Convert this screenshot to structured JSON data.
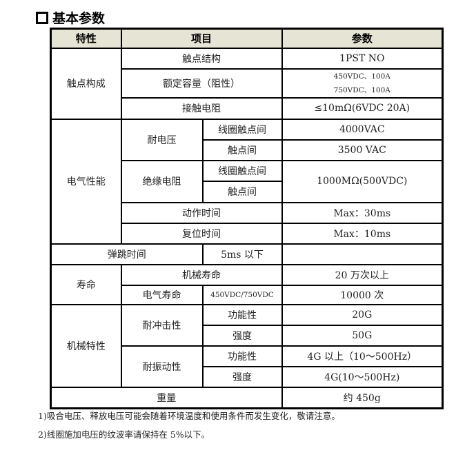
{
  "title": "基本参数",
  "header": [
    "特性",
    "项目",
    "参数"
  ],
  "rows": {
    "contact": {
      "group": "触点构成",
      "structure": "触点结构",
      "structure_val": "1PST NO",
      "rating": "额定容量（阻性）",
      "rating_val1": "450VDC、100A",
      "rating_val2": "750VDC、100A",
      "resistance": "接触电阻",
      "resistance_val": "≤10mΩ(6VDC 20A)"
    },
    "electrical": {
      "group": "电气性能",
      "withstand": "耐电压",
      "coil_contact": "线圈触点间",
      "withstand_cc_val": "4000VAC",
      "contact_contact": "触点间",
      "withstand_c_val": "3500 VAC",
      "insulation": "绝缘电阻",
      "insulation_coil_contact": "线圈触点间",
      "insulation_contact": "触点间",
      "insulation_val": "1000MΩ(500VDC)",
      "operate": "动作时间",
      "operate_val": "Max：30ms",
      "release": "复位时间",
      "release_val": "Max：10ms",
      "bounce": "弹跳时间",
      "bounce_val": "5ms 以下"
    },
    "life": {
      "group": "寿命",
      "mechanical": "机械寿命",
      "mechanical_val": "20 万次以上",
      "electrical": "电气寿命",
      "electrical_cond": "450VDC/750VDC",
      "electrical_val": "10000 次"
    },
    "mechanical": {
      "group": "机械特性",
      "shock": "耐冲击性",
      "shock_func": "功能性",
      "shock_func_val": "20G",
      "shock_str": "强度",
      "shock_str_val": "50G",
      "vibration": "耐振动性",
      "vib_func": "功能性",
      "vib_func_val": "4G 以上（10～500Hz）",
      "vib_str": "强度",
      "vib_str_val": "4G(10～500Hz)"
    },
    "weight": {
      "label": "重量",
      "value": "约 450g"
    }
  },
  "notes": [
    "1)吸合电压、释放电压可能会随着环境温度和使用条件而发生变化，敬请注意。",
    "2)线圈施加电压的纹波率请保持在 5%以下。"
  ]
}
